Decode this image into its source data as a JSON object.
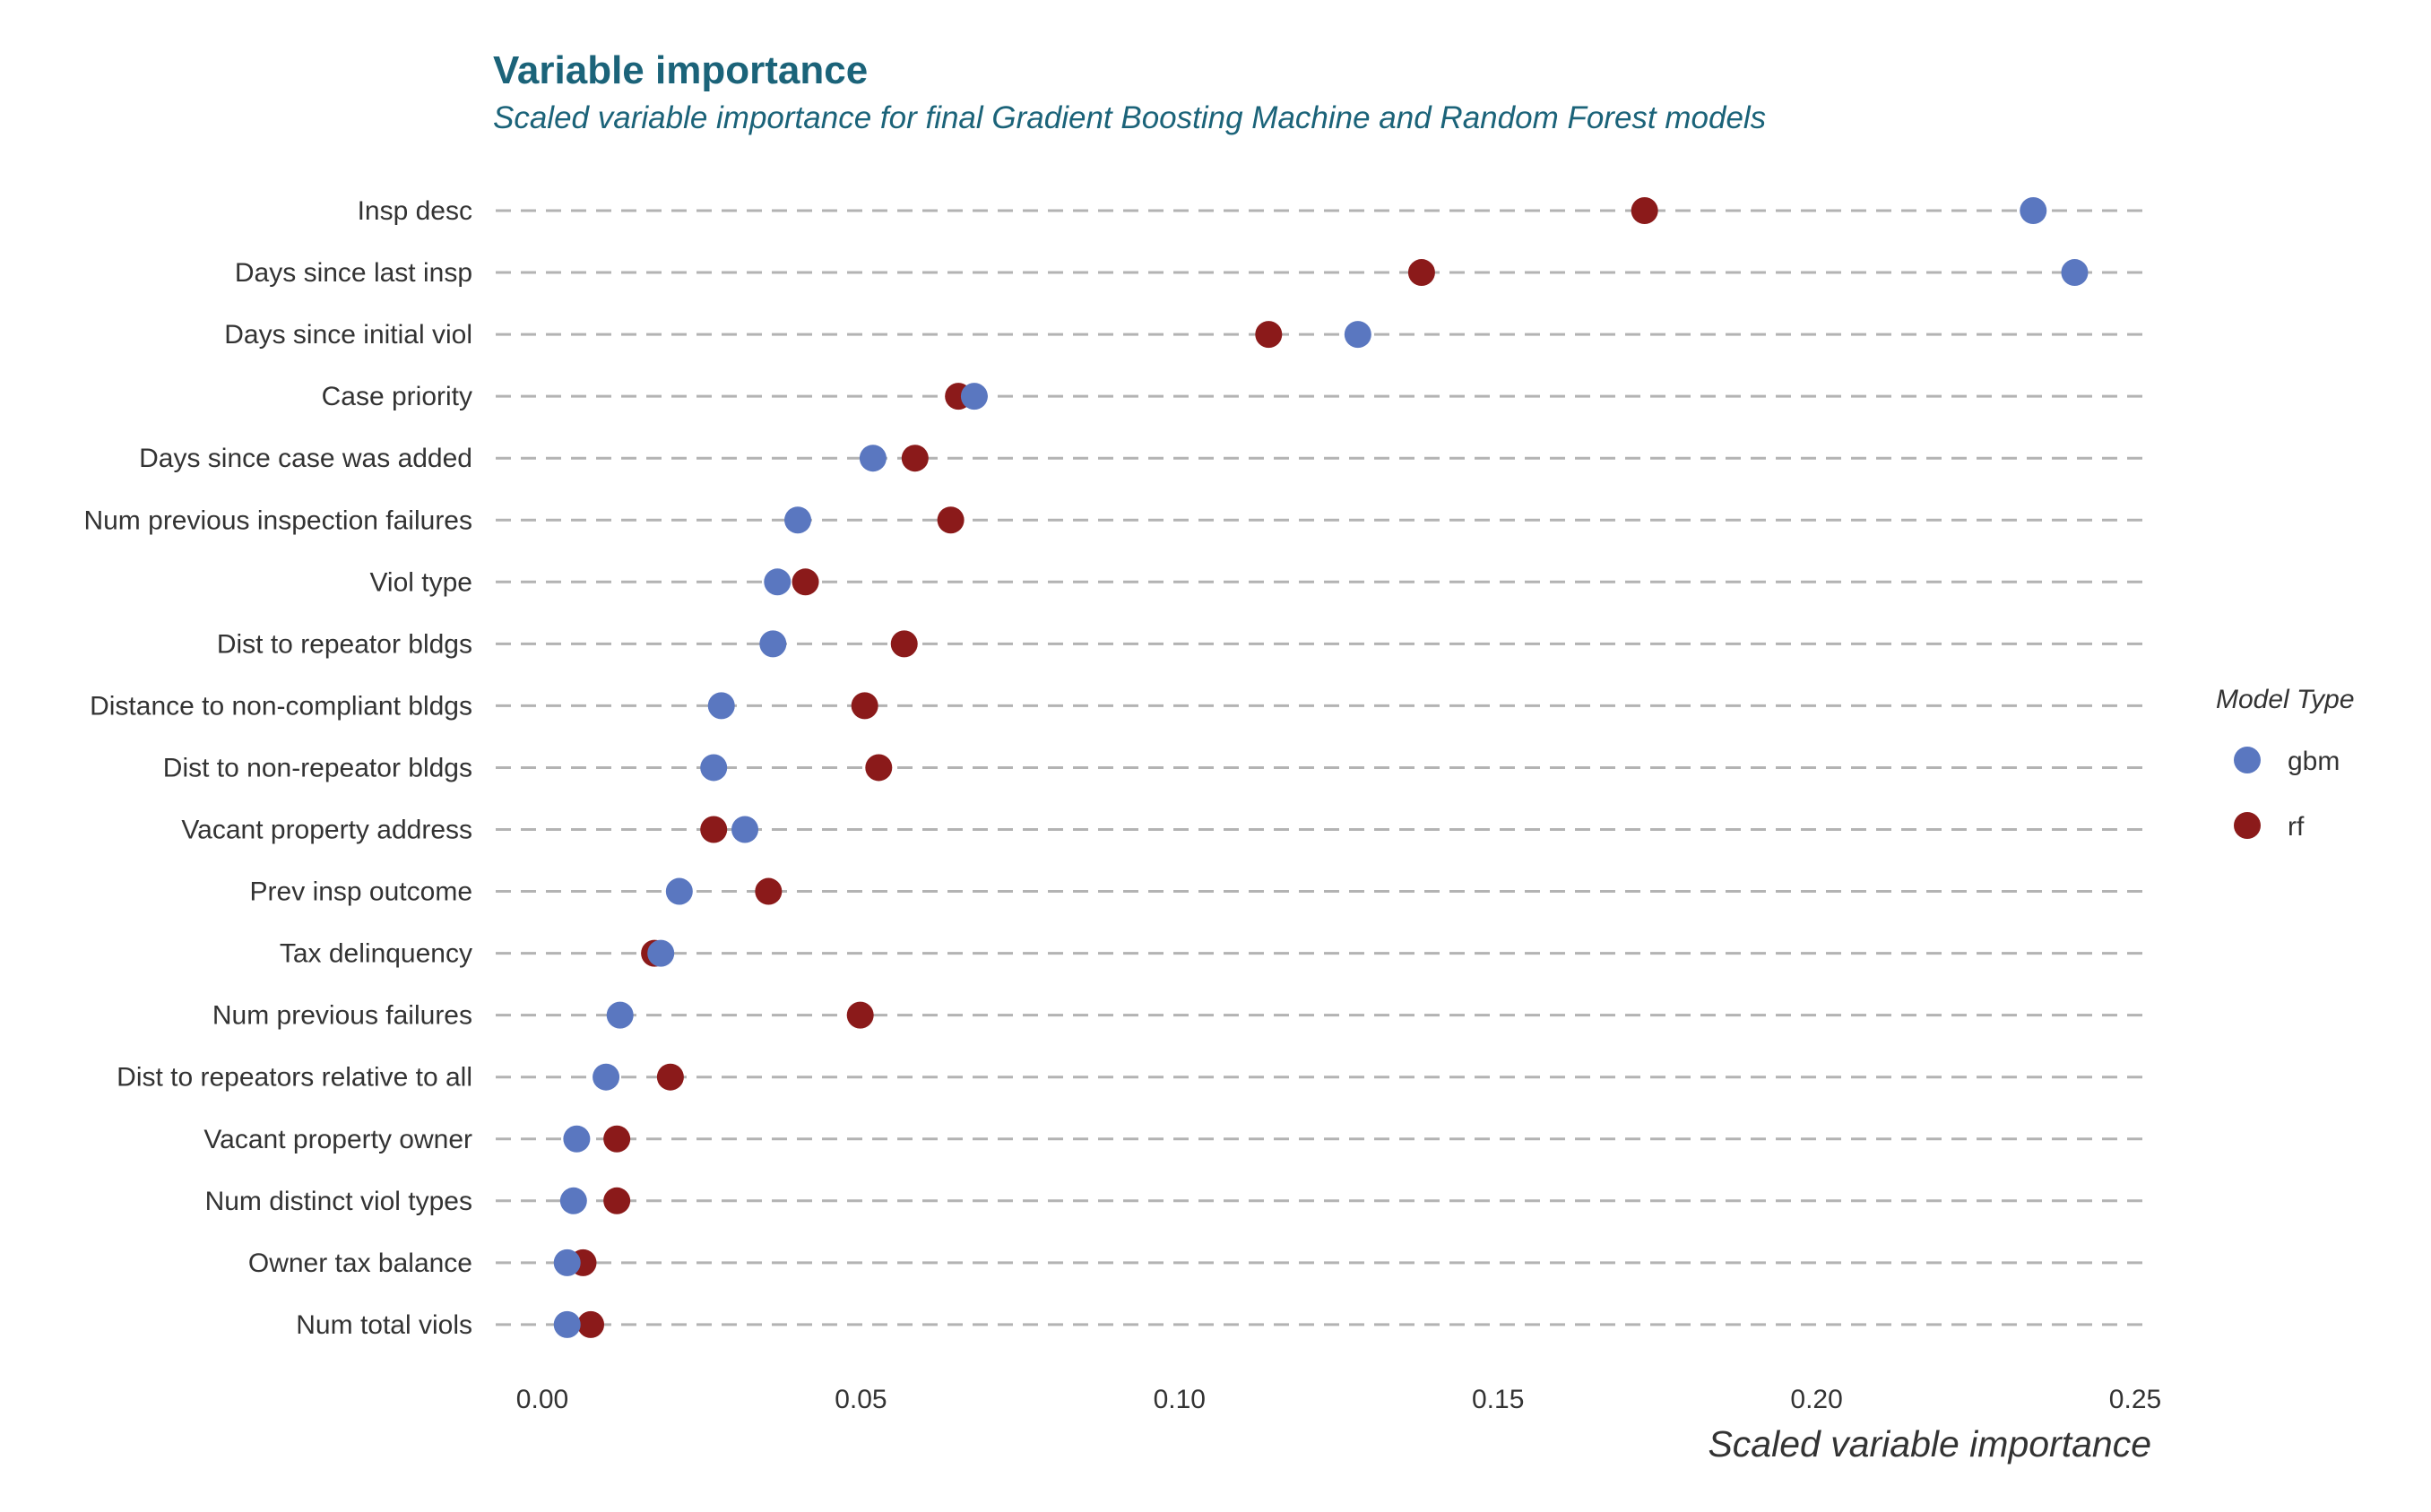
{
  "chart_data": {
    "type": "scatter",
    "title": "Variable importance",
    "subtitle": "Scaled variable importance for final Gradient Boosting Machine and Random Forest models",
    "xlabel": "Scaled variable importance",
    "ylabel": "",
    "xlim": [
      0,
      0.25
    ],
    "xticks": [
      "0.00",
      "0.05",
      "0.10",
      "0.15",
      "0.20",
      "0.25"
    ],
    "xtick_values": [
      0,
      0.05,
      0.1,
      0.15,
      0.2,
      0.25
    ],
    "grid": "horizontal dashed",
    "legend": {
      "title": "Model Type",
      "placement": "right"
    },
    "title_color": "#1b6379",
    "categories": [
      "Insp desc",
      "Days since last insp",
      "Days since initial viol",
      "Case priority",
      "Days since case was added",
      "Num previous inspection failures",
      "Viol type",
      "Dist to repeator bldgs",
      "Distance to non-compliant bldgs",
      "Dist to non-repeator bldgs",
      "Vacant property address",
      "Prev insp outcome",
      "Tax delinquency",
      "Num previous failures",
      "Dist to repeators relative to all",
      "Vacant property owner",
      "Num distinct viol types",
      "Owner tax balance",
      "Num total viols"
    ],
    "series": [
      {
        "name": "gbm",
        "color": "#5a77c0",
        "values": [
          0.234,
          0.2405,
          0.128,
          0.0678,
          0.0519,
          0.0401,
          0.0369,
          0.0362,
          0.0281,
          0.0269,
          0.0318,
          0.0215,
          0.0186,
          0.0122,
          0.01,
          0.0054,
          0.0049,
          0.0039,
          0.0039
        ]
      },
      {
        "name": "rf",
        "color": "#8b1a1a",
        "values": [
          0.173,
          0.138,
          0.114,
          0.0653,
          0.0585,
          0.0641,
          0.0413,
          0.0568,
          0.0506,
          0.0528,
          0.0269,
          0.0355,
          0.0176,
          0.0499,
          0.0201,
          0.0117,
          0.0117,
          0.0064,
          0.0076
        ]
      }
    ]
  }
}
